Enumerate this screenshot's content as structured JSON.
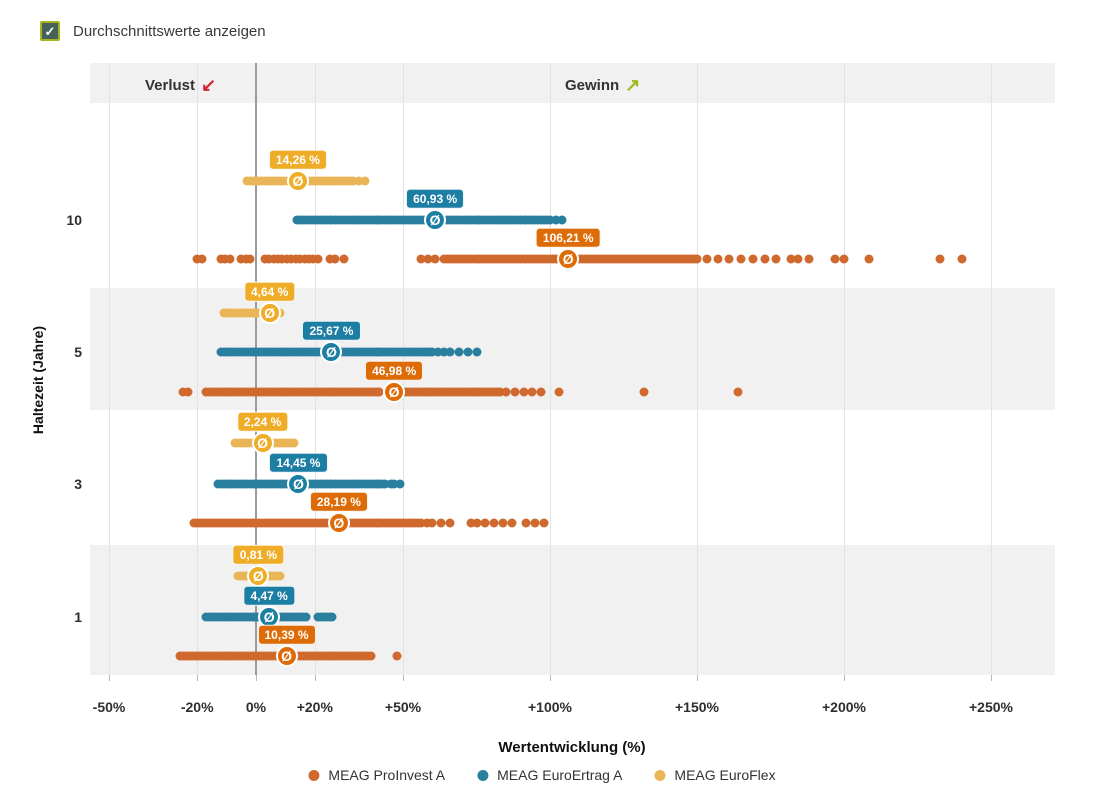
{
  "controls": {
    "average_checkbox": {
      "label": "Durchschnittswerte anzeigen",
      "checked": true,
      "check_glyph": "✓"
    }
  },
  "colors": {
    "proinvest": "#d0692e",
    "proinvest_label": "#dd6b06",
    "euroertrag": "#2a7f9e",
    "euroertrag_label": "#1d7ea4",
    "euroflex": "#eab557",
    "euroflex_label": "#eeac27",
    "band": "#f1f1f1",
    "grid": "#e2e2e2",
    "zero_line": "#9b9b9b",
    "tick": "#b9b9b9",
    "loss_arrow": "#d2232e",
    "gain_arrow": "#9cba16",
    "checkbox_fill": "#46615a",
    "checkbox_border": "#a6b41f"
  },
  "chart_data": {
    "type": "strip",
    "x_axis": {
      "label": "Wertentwicklung (%)",
      "range": [
        -56,
        272
      ],
      "ticks": [
        {
          "value": -50,
          "label": "-50%"
        },
        {
          "value": -20,
          "label": "-20%"
        },
        {
          "value": 0,
          "label": "0%"
        },
        {
          "value": 20,
          "label": "+20%"
        },
        {
          "value": 50,
          "label": "+50%"
        },
        {
          "value": 100,
          "label": "+100%"
        },
        {
          "value": 150,
          "label": "+150%"
        },
        {
          "value": 200,
          "label": "+200%"
        },
        {
          "value": 250,
          "label": "+250%"
        }
      ]
    },
    "y_axis": {
      "label": "Haltezeit (Jahre)",
      "categories": [
        "10",
        "5",
        "3",
        "1"
      ]
    },
    "annotations": {
      "loss": {
        "text": "Verlust",
        "arrow": "↙"
      },
      "gain": {
        "text": "Gewinn",
        "arrow": "↗"
      }
    },
    "average_symbol": "Ø",
    "legend": [
      {
        "label": "MEAG ProInvest A",
        "series": "proinvest"
      },
      {
        "label": "MEAG EuroErtrag A",
        "series": "euroertrag"
      },
      {
        "label": "MEAG EuroFlex",
        "series": "euroflex"
      }
    ],
    "groups": [
      {
        "period": "10",
        "rows": [
          {
            "series": "MEAG EuroFlex",
            "color_key": "euroflex",
            "avg": 14.26,
            "avg_label": "14,26 %",
            "points": [
              -3,
              -2,
              -1,
              0,
              1,
              2,
              3,
              4,
              5,
              6,
              7,
              8,
              9,
              10,
              11,
              12,
              13,
              14,
              15,
              16,
              17,
              18,
              19,
              20,
              21,
              22,
              23,
              24,
              25,
              26,
              27,
              28,
              29,
              30,
              31,
              32,
              33,
              35,
              37
            ]
          },
          {
            "series": "MEAG EuroErtrag A",
            "color_key": "euroertrag",
            "avg": 60.93,
            "avg_label": "60,93 %",
            "points": [
              14,
              15,
              16,
              17,
              18,
              19,
              20,
              21,
              22,
              23,
              24,
              25,
              26,
              27,
              28,
              29,
              30,
              31,
              32,
              33,
              34,
              35,
              36,
              37,
              38,
              39,
              40,
              41,
              42,
              43,
              44,
              45,
              46,
              47,
              48,
              49,
              50,
              51,
              52,
              53,
              54,
              55,
              56,
              57,
              58,
              59,
              60,
              61,
              62,
              63,
              64,
              65,
              66,
              67,
              68,
              69,
              70,
              71,
              72,
              73,
              74,
              75,
              76,
              77,
              78,
              79,
              80,
              81,
              82,
              83,
              84,
              85,
              86,
              87,
              88,
              89,
              90,
              91,
              92,
              93,
              94,
              95,
              96,
              97,
              98,
              99,
              100,
              102,
              104
            ]
          },
          {
            "series": "MEAG ProInvest A",
            "color_key": "proinvest",
            "avg": 106.21,
            "avg_label": "106,21 %",
            "points": [
              -20,
              -18.5,
              -12,
              -10.5,
              -9,
              -5,
              -3.5,
              -2,
              3,
              4.5,
              6,
              7.5,
              9,
              10.5,
              12,
              13.5,
              15,
              16.5,
              18,
              19.5,
              21,
              25,
              27,
              30,
              56,
              58.5,
              61,
              64,
              65,
              66,
              67,
              68,
              69,
              70,
              71,
              72,
              73,
              74,
              75,
              76,
              77,
              78,
              79,
              80,
              81,
              82,
              83,
              84,
              85,
              86,
              87,
              88,
              89,
              90,
              91,
              92,
              93,
              94,
              95,
              96,
              97,
              98,
              99,
              100,
              101,
              102,
              103,
              104,
              105,
              106,
              107,
              108,
              109,
              110,
              111,
              112,
              113,
              114,
              115,
              116,
              117,
              118,
              119,
              120,
              121,
              122,
              123,
              124,
              125,
              126,
              127,
              128,
              129,
              130,
              131,
              132,
              133,
              134,
              135,
              136,
              137,
              138,
              139,
              140,
              141,
              142,
              143,
              144,
              145,
              146,
              147,
              148,
              149,
              150,
              153.5,
              157,
              161,
              165,
              169,
              173,
              177,
              182,
              184.5,
              188,
              197,
              200,
              208.5,
              232.5,
              240
            ]
          }
        ]
      },
      {
        "period": "5",
        "rows": [
          {
            "series": "MEAG EuroFlex",
            "color_key": "euroflex",
            "avg": 4.64,
            "avg_label": "4,64 %",
            "points": [
              -11,
              -10,
              -9,
              -8,
              -7,
              -6,
              -5,
              -4,
              -3,
              -2,
              -1,
              0,
              1,
              2,
              3,
              4,
              5,
              6,
              7,
              8
            ]
          },
          {
            "series": "MEAG EuroErtrag A",
            "color_key": "euroertrag",
            "avg": 25.67,
            "avg_label": "25,67 %",
            "points": [
              -12,
              -11,
              -10,
              -9,
              -8,
              -7,
              -6,
              -5,
              -4,
              -3,
              -2,
              -1,
              0,
              1,
              2,
              3,
              4,
              5,
              6,
              7,
              8,
              9,
              10,
              11,
              12,
              13,
              14,
              15,
              16,
              17,
              18,
              19,
              20,
              21,
              22,
              23,
              24,
              25,
              26,
              27,
              28,
              29,
              30,
              31,
              32,
              33,
              34,
              35,
              36,
              37,
              38,
              39,
              40,
              41,
              42,
              43,
              44,
              45,
              46,
              47,
              48,
              49,
              50,
              51,
              52,
              53,
              54,
              55,
              56,
              57,
              58,
              59,
              60,
              62,
              64,
              66,
              69,
              72,
              75
            ]
          },
          {
            "series": "MEAG ProInvest A",
            "color_key": "proinvest",
            "avg": 46.98,
            "avg_label": "46,98 %",
            "points": [
              -25,
              -23,
              -17,
              -16,
              -15,
              -14,
              -13,
              -12,
              -11,
              -10,
              -9,
              -8,
              -7,
              -6,
              -5,
              -4,
              -3,
              -2,
              -1,
              0,
              1,
              2,
              3,
              4,
              5,
              6,
              7,
              8,
              9,
              10,
              11,
              12,
              13,
              14,
              15,
              16,
              17,
              18,
              19,
              20,
              21,
              22,
              23,
              24,
              25,
              26,
              27,
              28,
              29,
              30,
              31,
              32,
              33,
              34,
              35,
              36,
              37,
              38,
              39,
              40,
              41,
              42,
              47,
              48,
              49,
              50,
              51,
              52,
              53,
              54,
              55,
              56,
              57,
              58,
              59,
              60,
              61,
              62,
              63,
              64,
              65,
              66,
              67,
              68,
              69,
              70,
              71,
              72,
              73,
              74,
              75,
              76,
              77,
              78,
              79,
              80,
              81,
              82,
              83,
              85,
              88,
              91,
              94,
              97,
              103,
              132,
              164
            ]
          }
        ]
      },
      {
        "period": "3",
        "rows": [
          {
            "series": "MEAG EuroFlex",
            "color_key": "euroflex",
            "avg": 2.24,
            "avg_label": "2,24 %",
            "points": [
              -7,
              -6,
              -5,
              -4,
              -3,
              -2,
              -1,
              0,
              1,
              2,
              3,
              4,
              5,
              6,
              7,
              8,
              9,
              10,
              11,
              12,
              13
            ]
          },
          {
            "series": "MEAG EuroErtrag A",
            "color_key": "euroertrag",
            "avg": 14.45,
            "avg_label": "14,45 %",
            "points": [
              -13,
              -12,
              -11,
              -10,
              -9,
              -8,
              -7,
              -6,
              -5,
              -4,
              -3,
              -2,
              -1,
              0,
              1,
              2,
              3,
              4,
              5,
              6,
              7,
              8,
              9,
              10,
              11,
              12,
              13,
              14,
              15,
              16,
              17,
              18,
              19,
              20,
              21,
              22,
              23,
              24,
              25,
              26,
              27,
              28,
              29,
              30,
              31,
              32,
              33,
              34,
              35,
              36,
              37,
              38,
              39,
              40,
              41,
              42,
              43,
              44,
              46,
              47,
              49
            ]
          },
          {
            "series": "MEAG ProInvest A",
            "color_key": "proinvest",
            "avg": 28.19,
            "avg_label": "28,19 %",
            "points": [
              -21,
              -20,
              -19,
              -18,
              -17,
              -16,
              -15,
              -14,
              -13,
              -12,
              -11,
              -10,
              -9,
              -8,
              -7,
              -6,
              -5,
              -4,
              -3,
              -2,
              -1,
              0,
              1,
              2,
              3,
              4,
              5,
              6,
              7,
              8,
              9,
              10,
              11,
              12,
              13,
              14,
              15,
              16,
              17,
              18,
              19,
              20,
              21,
              22,
              23,
              24,
              25,
              26,
              27,
              28,
              29,
              30,
              31,
              32,
              33,
              34,
              35,
              36,
              37,
              38,
              39,
              40,
              41,
              42,
              43,
              44,
              45,
              46,
              47,
              48,
              49,
              50,
              51,
              52,
              53,
              54,
              55,
              56,
              58,
              60,
              63,
              66,
              73,
              75,
              78,
              81,
              84,
              87,
              92,
              95,
              98
            ]
          }
        ]
      },
      {
        "period": "1",
        "rows": [
          {
            "series": "MEAG EuroFlex",
            "color_key": "euroflex",
            "avg": 0.81,
            "avg_label": "0,81 %",
            "points": [
              -6,
              -5,
              -4,
              -3,
              -2,
              -1,
              0,
              1,
              2,
              3,
              4,
              5,
              6,
              7,
              8
            ]
          },
          {
            "series": "MEAG EuroErtrag A",
            "color_key": "euroertrag",
            "avg": 4.47,
            "avg_label": "4,47 %",
            "points": [
              -17,
              -16,
              -15,
              -14,
              -13,
              -12,
              -11,
              -10,
              -9,
              -8,
              -7,
              -6,
              -5,
              -4,
              -3,
              -2,
              -1,
              0,
              1,
              2,
              3,
              4,
              5,
              6,
              7,
              8,
              9,
              10,
              11,
              12,
              13,
              14,
              15,
              16,
              17,
              21,
              22,
              23,
              24,
              25,
              26
            ]
          },
          {
            "series": "MEAG ProInvest A",
            "color_key": "proinvest",
            "avg": 10.39,
            "avg_label": "10,39 %",
            "points": [
              -26,
              -25,
              -24,
              -23,
              -22,
              -21,
              -20,
              -19,
              -18,
              -17,
              -16,
              -15,
              -14,
              -13,
              -12,
              -11,
              -10,
              -9,
              -8,
              -7,
              -6,
              -5,
              -4,
              -3,
              -2,
              -1,
              0,
              1,
              2,
              3,
              4,
              5,
              6,
              7,
              8,
              9,
              10,
              11,
              12,
              13,
              14,
              15,
              16,
              17,
              18,
              19,
              20,
              21,
              22,
              23,
              24,
              25,
              26,
              27,
              28,
              29,
              30,
              31,
              32,
              33,
              34,
              35,
              36,
              37,
              38,
              39,
              48
            ]
          }
        ]
      }
    ]
  }
}
